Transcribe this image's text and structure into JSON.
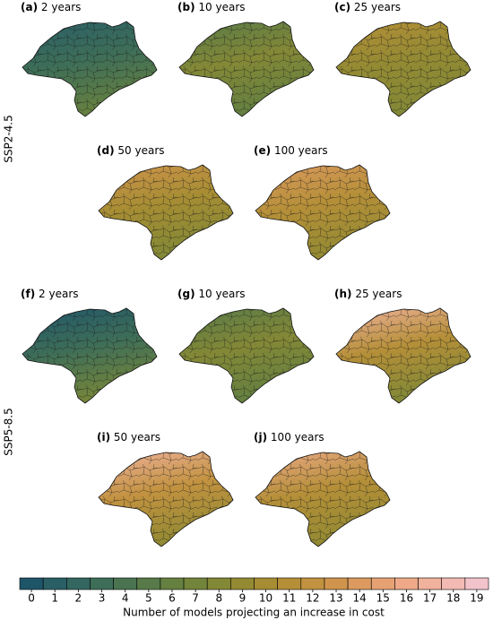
{
  "rows": [
    "SSP2-4.5",
    "SSP5-8.5"
  ],
  "panels": [
    {
      "label": "(a)",
      "title": "2 years"
    },
    {
      "label": "(b)",
      "title": "10 years"
    },
    {
      "label": "(c)",
      "title": "25 years"
    },
    {
      "label": "(d)",
      "title": "50 years"
    },
    {
      "label": "(e)",
      "title": "100 years"
    },
    {
      "label": "(f)",
      "title": "2 years"
    },
    {
      "label": "(g)",
      "title": "10 years"
    },
    {
      "label": "(h)",
      "title": "25 years"
    },
    {
      "label": "(i)",
      "title": "50 years"
    },
    {
      "label": "(j)",
      "title": "100 years"
    }
  ],
  "colorbar": {
    "label": "Number of models projecting an increase in cost",
    "ticks": [
      0,
      1,
      2,
      3,
      4,
      5,
      6,
      7,
      8,
      9,
      10,
      11,
      12,
      13,
      14,
      15,
      16,
      17,
      18,
      19
    ],
    "colors": [
      "#1f5569",
      "#2a5f66",
      "#336760",
      "#3e6e58",
      "#4a7450",
      "#577a48",
      "#658040",
      "#73853b",
      "#838836",
      "#948a33",
      "#a68d33",
      "#b58f38",
      "#c29240",
      "#d0944d",
      "#dc9a60",
      "#e6a273",
      "#eda988",
      "#f0b29c",
      "#f2bab2",
      "#f3c3cc"
    ]
  }
}
